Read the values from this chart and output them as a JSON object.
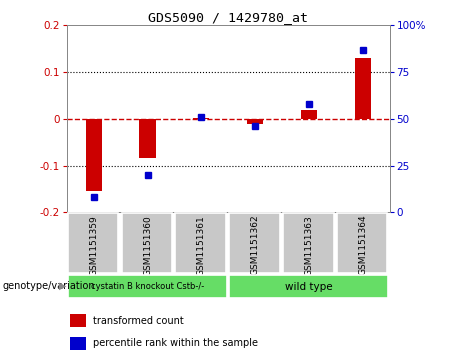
{
  "title": "GDS5090 / 1429780_at",
  "samples": [
    "GSM1151359",
    "GSM1151360",
    "GSM1151361",
    "GSM1151362",
    "GSM1151363",
    "GSM1151364"
  ],
  "red_values": [
    -0.155,
    -0.083,
    0.002,
    -0.012,
    0.02,
    0.13
  ],
  "blue_values": [
    8,
    20,
    51,
    46,
    58,
    87
  ],
  "ylim_left": [
    -0.2,
    0.2
  ],
  "ylim_right": [
    0,
    100
  ],
  "yticks_left": [
    -0.2,
    -0.1,
    0.0,
    0.1,
    0.2
  ],
  "yticks_right": [
    0,
    25,
    50,
    75,
    100
  ],
  "group1_label": "cystatin B knockout Cstb-/-",
  "group2_label": "wild type",
  "group_label": "genotype/variation",
  "legend_red": "transformed count",
  "legend_blue": "percentile rank within the sample",
  "bar_color": "#cc0000",
  "dot_color": "#0000cc",
  "red_dash_color": "#cc0000",
  "dot_line_color": "#000000",
  "bg_color": "#ffffff",
  "plot_bg": "#ffffff",
  "sample_box_color": "#c8c8c8",
  "group_box_color": "#66dd66",
  "bar_width": 0.3
}
